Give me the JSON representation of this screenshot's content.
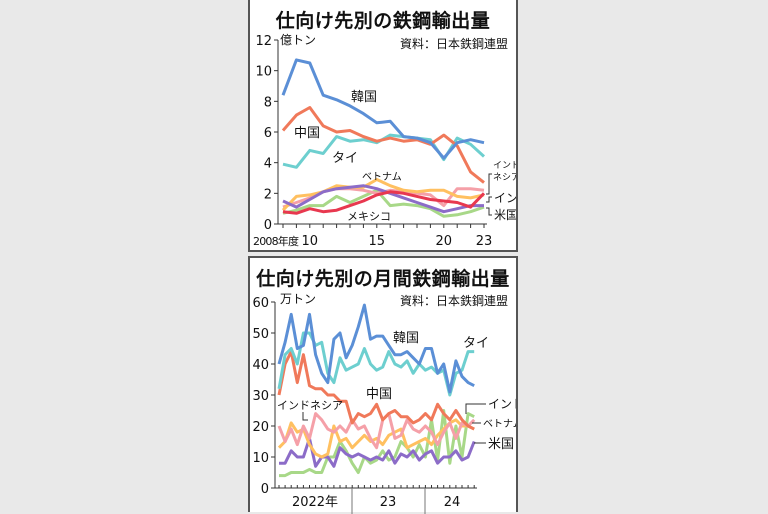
{
  "chart_data": [
    {
      "type": "line",
      "title": "仕向け先別の鉄鋼輸出量",
      "source": "資料：日本鉄鋼連盟",
      "ylabel": "億トン",
      "xlabel": "年度",
      "ylim": [
        0,
        12
      ],
      "yticks": [
        0,
        2,
        4,
        6,
        8,
        10,
        12
      ],
      "xtick_labels": [
        "2008年度",
        "10",
        "15",
        "20",
        "23"
      ],
      "x": [
        2008,
        2009,
        2010,
        2011,
        2012,
        2013,
        2014,
        2015,
        2016,
        2017,
        2018,
        2019,
        2020,
        2021,
        2022,
        2023
      ],
      "series": [
        {
          "name": "韓国",
          "color": "#5b8fd6",
          "values": [
            8.4,
            10.7,
            10.5,
            8.4,
            8.1,
            7.7,
            7.2,
            6.6,
            6.7,
            5.7,
            5.6,
            5.3,
            4.3,
            5.3,
            5.5,
            5.3
          ]
        },
        {
          "name": "中国",
          "color": "#f0795a",
          "values": [
            6.1,
            7.1,
            7.6,
            6.4,
            6.0,
            6.1,
            5.7,
            5.4,
            5.6,
            5.4,
            5.5,
            5.2,
            5.8,
            5.1,
            3.4,
            2.7
          ]
        },
        {
          "name": "タイ",
          "color": "#6dcfcf",
          "values": [
            3.9,
            3.7,
            4.8,
            4.6,
            5.7,
            5.4,
            5.5,
            5.3,
            5.8,
            5.7,
            5.6,
            5.5,
            4.2,
            5.6,
            5.2,
            4.4
          ]
        },
        {
          "name": "インドネシア",
          "color": "#f5a0a8",
          "values": [
            1.1,
            1.4,
            1.7,
            2.1,
            2.3,
            2.3,
            2.2,
            2.0,
            2.2,
            2.1,
            2.0,
            1.9,
            1.2,
            2.3,
            2.3,
            2.2
          ]
        },
        {
          "name": "ベトナム",
          "color": "#ffc060",
          "values": [
            0.9,
            1.8,
            1.9,
            2.1,
            2.5,
            2.4,
            2.4,
            2.9,
            2.5,
            2.2,
            2.1,
            2.2,
            2.2,
            1.8,
            1.7,
            1.9
          ]
        },
        {
          "name": "インド",
          "color": "#e8384f",
          "values": [
            0.8,
            0.7,
            1.0,
            0.8,
            0.9,
            1.2,
            1.5,
            1.9,
            2.1,
            2.0,
            1.8,
            1.6,
            1.5,
            1.4,
            1.1,
            2.0
          ]
        },
        {
          "name": "米国",
          "color": "#8c6cc8",
          "values": [
            1.5,
            1.1,
            1.6,
            2.1,
            2.3,
            2.4,
            2.5,
            2.3,
            2.0,
            1.7,
            1.4,
            1.1,
            0.8,
            1.0,
            1.2,
            1.2
          ]
        },
        {
          "name": "メキシコ",
          "color": "#a8d888",
          "values": [
            0.7,
            0.9,
            1.2,
            1.2,
            1.8,
            1.4,
            1.8,
            2.2,
            1.2,
            1.3,
            1.2,
            1.0,
            0.5,
            0.6,
            0.8,
            1.1
          ]
        }
      ],
      "annotations": [
        "韓国",
        "中国",
        "タイ",
        "ベトナム",
        "メキシコ",
        "インドネシア",
        "インド",
        "米国"
      ]
    },
    {
      "type": "line",
      "title": "仕向け先別の月間鉄鋼輸出量",
      "source": "資料：日本鉄鋼連盟",
      "ylabel": "万トン",
      "ylim": [
        0,
        60
      ],
      "yticks": [
        0,
        10,
        20,
        30,
        40,
        50,
        60
      ],
      "xtick_labels": [
        "2022年",
        "23",
        "24"
      ],
      "x_start": "2022-01",
      "x_end": "2024-09",
      "series": [
        {
          "name": "韓国",
          "color": "#5b8fd6",
          "values": [
            40,
            47,
            56,
            45,
            46,
            56,
            43,
            37,
            34,
            48,
            50,
            42,
            46,
            52,
            59,
            48,
            49,
            49,
            46,
            43,
            43,
            44,
            42,
            40,
            45,
            45,
            37,
            40,
            31,
            41,
            36,
            34,
            33
          ]
        },
        {
          "name": "タイ",
          "color": "#6dcfcf",
          "values": [
            32,
            43,
            45,
            40,
            50,
            50,
            46,
            47,
            37,
            34,
            42,
            38,
            39,
            40,
            45,
            40,
            38,
            39,
            44,
            40,
            39,
            41,
            37,
            40,
            38,
            39,
            37,
            38,
            30,
            37,
            38,
            44,
            44
          ]
        },
        {
          "name": "中国",
          "color": "#f0795a",
          "values": [
            30,
            40,
            44,
            34,
            43,
            33,
            32,
            32,
            30,
            30,
            28,
            28,
            21,
            24,
            23,
            24,
            27,
            22,
            24,
            25,
            23,
            23,
            21,
            22,
            24,
            22,
            27,
            24,
            22,
            25,
            22,
            20,
            19
          ]
        },
        {
          "name": "インドネシア",
          "color": "#f5a0a8",
          "values": [
            20,
            15,
            19,
            14,
            20,
            16,
            24,
            22,
            19,
            18,
            20,
            18,
            22,
            19,
            20,
            16,
            13,
            22,
            24,
            16,
            17,
            22,
            19,
            18,
            20,
            18,
            14,
            18,
            21,
            16,
            21,
            20,
            22
          ]
        },
        {
          "name": "ベトナム",
          "color": "#ffc060",
          "values": [
            13,
            15,
            21,
            18,
            19,
            14,
            11,
            10,
            11,
            20,
            15,
            16,
            13,
            15,
            17,
            15,
            16,
            14,
            17,
            18,
            19,
            13,
            14,
            15,
            16,
            14,
            17,
            19,
            21,
            22,
            20,
            20,
            19
          ]
        },
        {
          "name": "インド",
          "color": "#e8384f",
          "values": [
            null,
            null,
            null,
            null,
            null,
            null,
            null,
            null,
            null,
            null,
            null,
            null,
            null,
            null,
            null,
            null,
            null,
            null,
            null,
            null,
            null,
            null,
            null,
            null,
            null,
            null,
            null,
            null,
            null,
            null,
            null,
            null,
            null
          ]
        },
        {
          "name": "米国",
          "color": "#8c6cc8",
          "values": [
            8,
            8,
            12,
            10,
            10,
            16,
            7,
            10,
            10,
            7,
            13,
            11,
            10,
            11,
            10,
            9,
            10,
            9,
            12,
            8,
            11,
            10,
            12,
            9,
            11,
            12,
            8,
            10,
            10,
            12,
            9,
            10,
            15
          ]
        },
        {
          "name": "メキシコ",
          "color": "#a8d888",
          "values": [
            4,
            4,
            5,
            5,
            5,
            6,
            5,
            5,
            10,
            10,
            15,
            12,
            8,
            5,
            10,
            8,
            9,
            12,
            9,
            10,
            15,
            13,
            10,
            14,
            10,
            22,
            9,
            25,
            8,
            20,
            10,
            24,
            23
          ]
        }
      ],
      "annotations": [
        "韓国",
        "タイ",
        "中国",
        "インドネシア",
        "インド",
        "ベトナム",
        "米国"
      ]
    }
  ],
  "top": {
    "title": "仕向け先別の鉄鋼輸出量",
    "source": "資料：日本鉄鋼連盟",
    "unit": "億トン",
    "yticks": [
      "0",
      "2",
      "4",
      "6",
      "8",
      "10",
      "12"
    ],
    "xticks": [
      "2008年度",
      "10",
      "15",
      "20",
      "23"
    ],
    "labels": {
      "kr": "韓国",
      "cn": "中国",
      "th": "タイ",
      "vn": "ベトナム",
      "mx": "メキシコ",
      "id1": "インド",
      "id2": "ネシア",
      "in": "インド",
      "us": "米国"
    }
  },
  "bottom": {
    "title": "仕向け先別の月間鉄鋼輸出量",
    "source": "資料：日本鉄鋼連盟",
    "unit": "万トン",
    "yticks": [
      "0",
      "10",
      "20",
      "30",
      "40",
      "50",
      "60"
    ],
    "xticks": [
      "2022年",
      "23",
      "24"
    ],
    "labels": {
      "kr": "韓国",
      "th": "タイ",
      "cn": "中国",
      "idn": "インドネシア",
      "in": "インド",
      "vn": "ベトナム",
      "us": "米国"
    }
  }
}
